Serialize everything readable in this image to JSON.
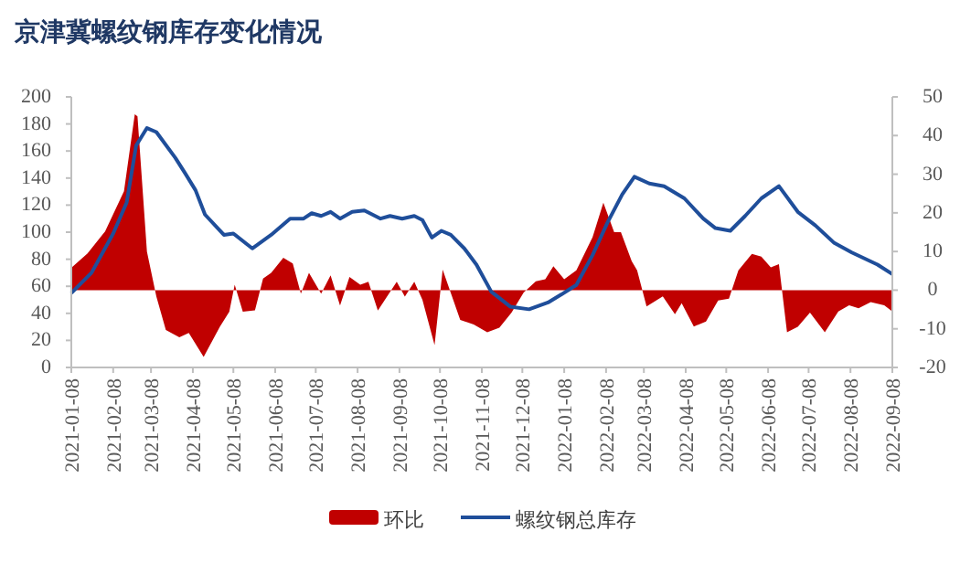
{
  "chart_data": {
    "type": "line",
    "title": "京津冀螺纹钢库存变化情况",
    "xlim": [
      "2021-01-08",
      "2022-09-08"
    ],
    "xticks": [
      "2021-01-08",
      "2021-02-08",
      "2021-03-08",
      "2021-04-08",
      "2021-05-08",
      "2021-06-08",
      "2021-07-08",
      "2021-08-08",
      "2021-09-08",
      "2021-10-08",
      "2021-11-08",
      "2021-12-08",
      "2022-01-08",
      "2022-02-08",
      "2022-03-08",
      "2022-04-08",
      "2022-05-08",
      "2022-06-08",
      "2022-07-08",
      "2022-08-08",
      "2022-09-08"
    ],
    "ylim": [
      0,
      200
    ],
    "yticks": [
      0,
      20,
      40,
      60,
      80,
      100,
      120,
      140,
      160,
      180,
      200
    ],
    "y2lim": [
      -20,
      50
    ],
    "y2ticks": [
      -20,
      -10,
      0,
      10,
      20,
      30,
      40,
      50
    ],
    "legend": "bottom",
    "series": [
      {
        "name": "环比",
        "type": "area",
        "axis": "y2",
        "color": "#c00000",
        "x": [
          "2021-01-08",
          "2021-01-20",
          "2021-02-02",
          "2021-02-16",
          "2021-02-24",
          "2021-02-26",
          "2021-03-05",
          "2021-03-12",
          "2021-03-19",
          "2021-03-29",
          "2021-04-05",
          "2021-04-16",
          "2021-04-28",
          "2021-05-05",
          "2021-05-09",
          "2021-05-15",
          "2021-05-24",
          "2021-05-30",
          "2021-06-05",
          "2021-06-14",
          "2021-06-21",
          "2021-06-27",
          "2021-07-03",
          "2021-07-12",
          "2021-07-19",
          "2021-07-26",
          "2021-08-02",
          "2021-08-10",
          "2021-08-16",
          "2021-08-23",
          "2021-09-06",
          "2021-09-12",
          "2021-09-19",
          "2021-09-25",
          "2021-10-04",
          "2021-10-10",
          "2021-10-23",
          "2021-11-02",
          "2021-11-12",
          "2021-11-21",
          "2021-11-30",
          "2021-12-09",
          "2021-12-18",
          "2021-12-25",
          "2021-12-31",
          "2022-01-08",
          "2022-01-17",
          "2022-01-29",
          "2022-02-06",
          "2022-02-14",
          "2022-02-19",
          "2022-02-27",
          "2022-03-03",
          "2022-03-10",
          "2022-03-22",
          "2022-03-31",
          "2022-04-05",
          "2022-04-14",
          "2022-04-23",
          "2022-05-02",
          "2022-05-10",
          "2022-05-17",
          "2022-05-27",
          "2022-06-03",
          "2022-06-10",
          "2022-06-16",
          "2022-06-22",
          "2022-06-30",
          "2022-07-09",
          "2022-07-20",
          "2022-07-30",
          "2022-08-07",
          "2022-08-14",
          "2022-08-23",
          "2022-09-02",
          "2022-09-08"
        ],
        "values": [
          5.8,
          9.5,
          15.2,
          25.6,
          45.5,
          45,
          10,
          -1.7,
          -10.3,
          -12.2,
          -11.1,
          -17.3,
          -9.5,
          -5.6,
          1.4,
          -5.6,
          -5.2,
          3,
          4.5,
          8.4,
          6.9,
          -0.9,
          4.5,
          -0.9,
          3.8,
          -4,
          3.4,
          1.4,
          2.2,
          -5.3,
          2.2,
          -1.7,
          2.2,
          -2.5,
          -14.2,
          5.3,
          -7.7,
          -8.9,
          -10.9,
          -9.7,
          -5.8,
          -0.6,
          2.3,
          2.8,
          6.2,
          2.8,
          5.1,
          13.7,
          22.6,
          15,
          15,
          7.5,
          5.1,
          -4.2,
          -1.6,
          -6.2,
          -3.4,
          -9.4,
          -8.1,
          -2.7,
          -2.2,
          5.1,
          9.4,
          8.7,
          5.9,
          6.7,
          -10.9,
          -9.5,
          -5.8,
          -10.9,
          -5.5,
          -3.9,
          -4.7,
          -3.1,
          -3.9,
          -5.5
        ]
      },
      {
        "name": "螺纹钢总库存",
        "color": "#1f4e9a",
        "x": [
          "2021-01-08",
          "2021-01-23",
          "2021-02-08",
          "2021-02-18",
          "2021-02-25",
          "2021-03-05",
          "2021-03-12",
          "2021-03-26",
          "2021-04-02",
          "2021-04-10",
          "2021-04-17",
          "2021-05-01",
          "2021-05-08",
          "2021-05-22",
          "2021-06-05",
          "2021-06-19",
          "2021-06-29",
          "2021-07-05",
          "2021-07-12",
          "2021-07-19",
          "2021-07-26",
          "2021-08-04",
          "2021-08-13",
          "2021-08-25",
          "2021-09-01",
          "2021-09-10",
          "2021-09-19",
          "2021-09-25",
          "2021-10-02",
          "2021-10-09",
          "2021-10-16",
          "2021-10-26",
          "2021-11-04",
          "2021-11-15",
          "2021-11-29",
          "2021-12-13",
          "2021-12-27",
          "2022-01-06",
          "2022-01-17",
          "2022-01-29",
          "2022-02-09",
          "2022-02-20",
          "2022-03-01",
          "2022-03-12",
          "2022-03-23",
          "2022-04-07",
          "2022-04-21",
          "2022-04-30",
          "2022-05-11",
          "2022-05-22",
          "2022-06-03",
          "2022-06-16",
          "2022-06-30",
          "2022-07-13",
          "2022-07-27",
          "2022-08-09",
          "2022-08-28",
          "2022-09-08"
        ],
        "values": [
          55,
          70,
          99,
          122,
          164,
          177,
          174,
          155,
          144,
          131,
          113,
          98,
          99,
          88,
          98,
          110,
          110,
          114,
          112,
          115,
          110,
          115,
          116,
          110,
          112,
          110,
          112,
          109,
          96,
          101,
          98,
          88,
          76,
          56,
          45,
          43,
          48,
          54,
          61,
          83,
          107,
          128,
          141,
          136,
          134,
          125,
          110,
          103,
          101,
          112,
          125,
          134,
          115,
          105,
          92,
          85,
          76,
          69
        ]
      }
    ]
  }
}
